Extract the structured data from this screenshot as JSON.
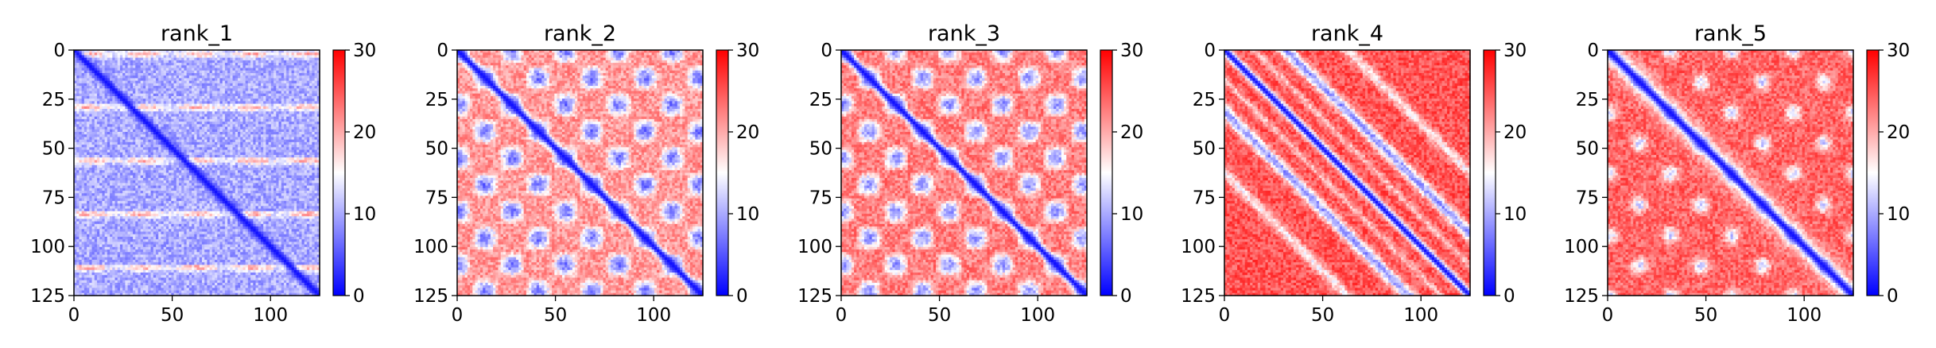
{
  "chart_data": [
    {
      "type": "heatmap",
      "title": "rank_1",
      "pattern": "diagonal-blue with horizontal red bands",
      "matrix_size": 125,
      "xlim": [
        0,
        125
      ],
      "ylim": [
        125,
        0
      ],
      "xticks": [
        "0",
        "50",
        "100"
      ],
      "yticks": [
        "0",
        "25",
        "50",
        "75",
        "100",
        "125"
      ],
      "colorbar": {
        "colormap": "bwr",
        "range": [
          0,
          30
        ],
        "ticks": [
          "0",
          "10",
          "20",
          "30"
        ]
      }
    },
    {
      "type": "heatmap",
      "title": "rank_2",
      "pattern": "blue diagonal with blue blob grid on red background",
      "matrix_size": 125,
      "xlim": [
        0,
        125
      ],
      "ylim": [
        125,
        0
      ],
      "xticks": [
        "0",
        "50",
        "100"
      ],
      "yticks": [
        "0",
        "25",
        "50",
        "75",
        "100",
        "125"
      ],
      "colorbar": {
        "colormap": "bwr",
        "range": [
          0,
          30
        ],
        "ticks": [
          "0",
          "10",
          "20",
          "30"
        ]
      }
    },
    {
      "type": "heatmap",
      "title": "rank_3",
      "pattern": "blue diagonal with blue blob grid on red background",
      "matrix_size": 125,
      "xlim": [
        0,
        125
      ],
      "ylim": [
        125,
        0
      ],
      "xticks": [
        "0",
        "50",
        "100"
      ],
      "yticks": [
        "0",
        "25",
        "50",
        "75",
        "100",
        "125"
      ],
      "colorbar": {
        "colormap": "bwr",
        "range": [
          0,
          30
        ],
        "ticks": [
          "0",
          "10",
          "20",
          "30"
        ]
      }
    },
    {
      "type": "heatmap",
      "title": "rank_4",
      "pattern": "blue diagonal with parallel off-diagonal blue stripes on red background",
      "matrix_size": 125,
      "xlim": [
        0,
        125
      ],
      "ylim": [
        125,
        0
      ],
      "xticks": [
        "0",
        "50",
        "100"
      ],
      "yticks": [
        "0",
        "25",
        "50",
        "75",
        "100",
        "125"
      ],
      "colorbar": {
        "colormap": "bwr",
        "range": [
          0,
          30
        ],
        "ticks": [
          "0",
          "10",
          "20",
          "30"
        ]
      }
    },
    {
      "type": "heatmap",
      "title": "rank_5",
      "pattern": "blue diagonal with scattered pale spots on red background",
      "matrix_size": 125,
      "xlim": [
        0,
        125
      ],
      "ylim": [
        125,
        0
      ],
      "xticks": [
        "0",
        "50",
        "100"
      ],
      "yticks": [
        "0",
        "25",
        "50",
        "75",
        "100",
        "125"
      ],
      "colorbar": {
        "colormap": "bwr",
        "range": [
          0,
          30
        ],
        "ticks": [
          "0",
          "10",
          "20",
          "30"
        ]
      }
    }
  ]
}
